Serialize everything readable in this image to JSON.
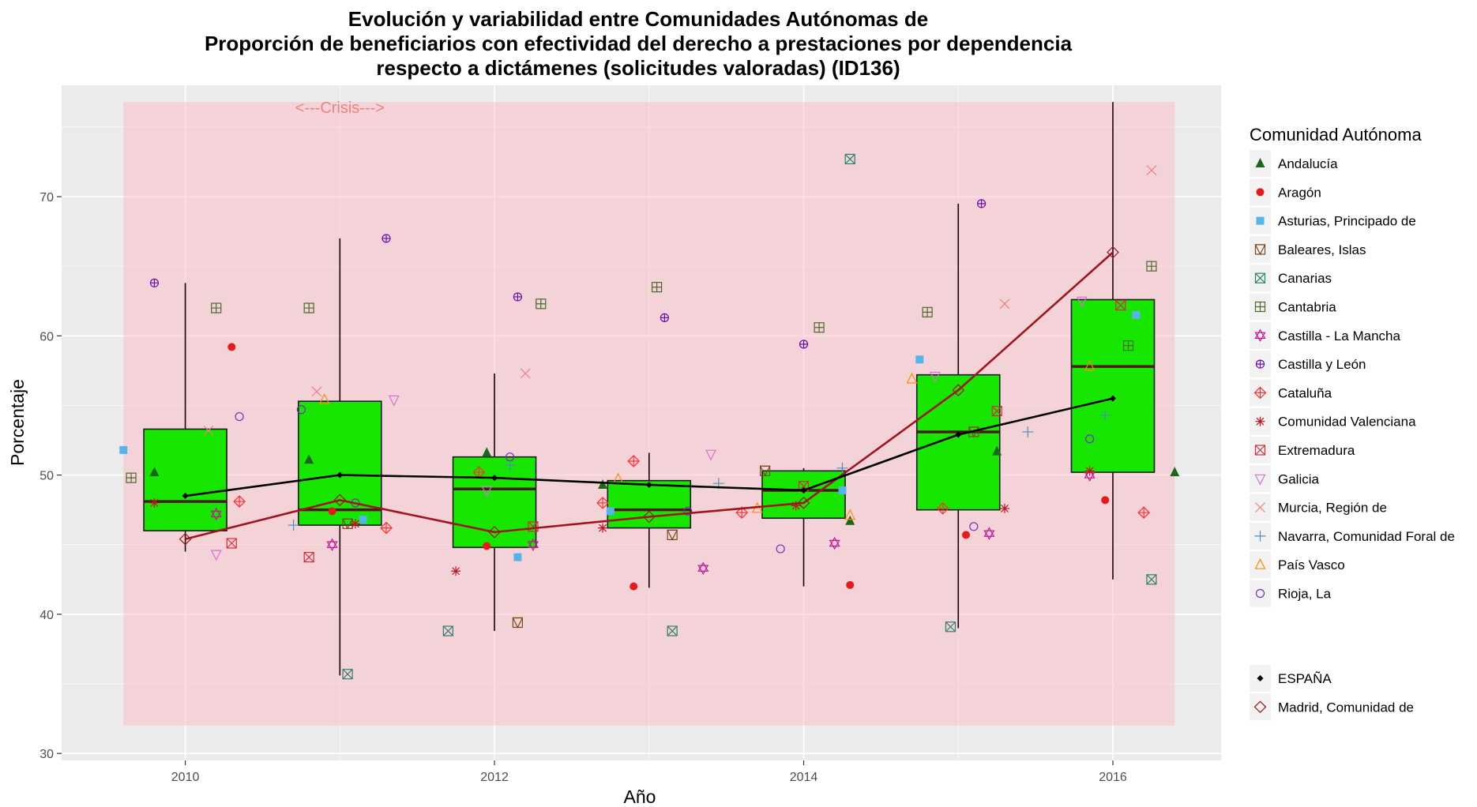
{
  "chart_data": {
    "type": "boxplot",
    "title": [
      "Evolución y variabilidad entre Comunidades Autónomas de",
      "Proporción de beneficiarios con efectividad del derecho a prestaciones por dependencia",
      "respecto a dictámenes (solicitudes valoradas) (ID136)"
    ],
    "xlabel": "Año",
    "ylabel": "Porcentaje",
    "xlim": [
      2009.2,
      2016.7
    ],
    "ylim": [
      29.5,
      78
    ],
    "x_ticks": [
      2010,
      2012,
      2014,
      2016
    ],
    "y_ticks": [
      30,
      40,
      50,
      60,
      70
    ],
    "grid": true,
    "legend_position": "right",
    "annotation": {
      "text": "<---Crisis--->",
      "x": 2011,
      "y": 76.8,
      "color": "#f08080"
    },
    "crisis_band": {
      "x_range": [
        2009.6,
        2016.4
      ],
      "y_range": [
        32,
        76.8
      ],
      "color": "#ffb6c1"
    },
    "box_fill": "#16e600",
    "boxes": [
      {
        "year": 2010,
        "min": 44.5,
        "q1": 46.0,
        "median": 48.1,
        "q3": 53.3,
        "max": 63.8
      },
      {
        "year": 2011,
        "min": 35.6,
        "q1": 46.4,
        "median": 47.5,
        "q3": 55.3,
        "max": 67.0
      },
      {
        "year": 2012,
        "min": 38.8,
        "q1": 44.8,
        "median": 49.0,
        "q3": 51.3,
        "max": 57.3
      },
      {
        "year": 2013,
        "min": 41.9,
        "q1": 46.2,
        "median": 47.5,
        "q3": 49.6,
        "max": 51.6
      },
      {
        "year": 2014,
        "min": 42.0,
        "q1": 46.9,
        "median": 48.9,
        "q3": 50.3,
        "max": 50.5
      },
      {
        "year": 2015,
        "min": 39.0,
        "q1": 47.5,
        "median": 53.1,
        "q3": 57.2,
        "max": 69.5
      },
      {
        "year": 2016,
        "min": 42.5,
        "q1": 50.2,
        "median": 57.8,
        "q3": 62.6,
        "max": 76.8
      }
    ],
    "legend_title": "Comunidad Autónoma",
    "series": [
      {
        "name": "Andalucía",
        "shape": "triangle-filled",
        "color": "#1a661a",
        "points": [
          [
            2009.8,
            50.2
          ],
          [
            2010.8,
            51.1
          ],
          [
            2011.95,
            51.6
          ],
          [
            2012.7,
            49.3
          ],
          [
            2014.3,
            46.7
          ],
          [
            2015.25,
            51.7
          ],
          [
            2016.4,
            50.2
          ]
        ]
      },
      {
        "name": "Aragón",
        "shape": "circle-filled",
        "color": "#e41a1c",
        "points": [
          [
            2010.3,
            59.2
          ],
          [
            2010.95,
            47.4
          ],
          [
            2011.95,
            44.9
          ],
          [
            2012.9,
            42.0
          ],
          [
            2014.3,
            42.1
          ],
          [
            2015.05,
            45.7
          ],
          [
            2015.95,
            48.2
          ]
        ]
      },
      {
        "name": "Asturias, Principado de",
        "shape": "square-filled",
        "color": "#56b4e9",
        "points": [
          [
            2009.6,
            51.8
          ],
          [
            2011.15,
            46.8
          ],
          [
            2012.15,
            44.1
          ],
          [
            2012.75,
            47.4
          ],
          [
            2014.25,
            48.9
          ],
          [
            2014.75,
            58.3
          ],
          [
            2016.15,
            61.5
          ]
        ]
      },
      {
        "name": "Baleares, Islas",
        "shape": "square-triangle",
        "color": "#7a4a1a",
        "points": [
          [
            2011.05,
            46.5
          ],
          [
            2012.15,
            39.4
          ],
          [
            2013.15,
            45.7
          ],
          [
            2013.75,
            50.3
          ],
          [
            2015.1,
            53.1
          ]
        ]
      },
      {
        "name": "Canarias",
        "shape": "square-x",
        "color": "#2f7f6f",
        "points": [
          [
            2011.05,
            35.7
          ],
          [
            2011.7,
            38.8
          ],
          [
            2013.15,
            38.8
          ],
          [
            2014.3,
            72.7
          ],
          [
            2014.95,
            39.1
          ],
          [
            2016.25,
            42.5
          ]
        ]
      },
      {
        "name": "Cantabria",
        "shape": "square-plus",
        "color": "#4a6b2a",
        "points": [
          [
            2009.65,
            49.8
          ],
          [
            2010.2,
            62.0
          ],
          [
            2010.8,
            62.0
          ],
          [
            2012.3,
            62.3
          ],
          [
            2013.05,
            63.5
          ],
          [
            2014.1,
            60.6
          ],
          [
            2014.8,
            61.7
          ],
          [
            2016.1,
            59.3
          ],
          [
            2016.25,
            65.0
          ]
        ]
      },
      {
        "name": "Castilla - La Mancha",
        "shape": "star-of-david",
        "color": "#c0189a",
        "points": [
          [
            2010.2,
            47.2
          ],
          [
            2010.95,
            45.0
          ],
          [
            2012.25,
            45.0
          ],
          [
            2013.35,
            43.3
          ],
          [
            2014.2,
            45.1
          ],
          [
            2015.2,
            45.8
          ],
          [
            2015.85,
            50.0
          ]
        ]
      },
      {
        "name": "Castilla y León",
        "shape": "circle-plus",
        "color": "#6a0dad",
        "points": [
          [
            2009.8,
            63.8
          ],
          [
            2011.3,
            67.0
          ],
          [
            2012.15,
            62.8
          ],
          [
            2013.1,
            61.3
          ],
          [
            2014.0,
            59.4
          ],
          [
            2015.15,
            69.5
          ]
        ]
      },
      {
        "name": "Cataluña",
        "shape": "diamond-plus",
        "color": "#ff3030",
        "points": [
          [
            2010.35,
            48.1
          ],
          [
            2011.3,
            46.2
          ],
          [
            2011.9,
            50.2
          ],
          [
            2012.7,
            48.0
          ],
          [
            2012.9,
            51.0
          ],
          [
            2013.6,
            47.3
          ],
          [
            2014.9,
            47.6
          ],
          [
            2016.2,
            47.3
          ]
        ]
      },
      {
        "name": "Comunidad Valenciana",
        "shape": "asterisk",
        "color": "#c1121f",
        "points": [
          [
            2009.8,
            48.0
          ],
          [
            2011.1,
            46.5
          ],
          [
            2011.75,
            43.1
          ],
          [
            2012.7,
            46.2
          ],
          [
            2013.95,
            47.8
          ],
          [
            2015.3,
            47.6
          ],
          [
            2015.85,
            50.3
          ]
        ]
      },
      {
        "name": "Extremadura",
        "shape": "square-x-red",
        "color": "#d62d3a",
        "points": [
          [
            2010.3,
            45.1
          ],
          [
            2010.8,
            44.1
          ],
          [
            2012.25,
            46.3
          ],
          [
            2014.0,
            49.2
          ],
          [
            2015.25,
            54.6
          ],
          [
            2016.05,
            62.2
          ]
        ]
      },
      {
        "name": "Galicia",
        "shape": "triangle-down",
        "color": "#da70d6",
        "points": [
          [
            2010.2,
            44.3
          ],
          [
            2011.35,
            55.4
          ],
          [
            2011.95,
            48.9
          ],
          [
            2013.4,
            51.5
          ],
          [
            2014.85,
            57.1
          ],
          [
            2015.8,
            62.5
          ]
        ]
      },
      {
        "name": "Murcia, Región de",
        "shape": "cross",
        "color": "#f08080",
        "points": [
          [
            2010.15,
            53.2
          ],
          [
            2010.85,
            56.0
          ],
          [
            2012.2,
            57.3
          ],
          [
            2015.3,
            62.3
          ],
          [
            2016.25,
            71.9
          ]
        ]
      },
      {
        "name": "Navarra, Comunidad Foral de",
        "shape": "plus",
        "color": "#4a90c2",
        "points": [
          [
            2010.7,
            46.4
          ],
          [
            2012.1,
            50.7
          ],
          [
            2013.45,
            49.4
          ],
          [
            2014.25,
            50.5
          ],
          [
            2015.45,
            53.1
          ],
          [
            2015.95,
            54.3
          ]
        ]
      },
      {
        "name": "País Vasco",
        "shape": "triangle-open",
        "color": "#ff8c00",
        "points": [
          [
            2010.9,
            55.4
          ],
          [
            2012.8,
            49.7
          ],
          [
            2013.7,
            47.6
          ],
          [
            2014.3,
            47.1
          ],
          [
            2014.7,
            56.9
          ],
          [
            2015.85,
            57.8
          ]
        ]
      },
      {
        "name": "Rioja, La",
        "shape": "circle-open",
        "color": "#7b2cbf",
        "points": [
          [
            2010.35,
            54.2
          ],
          [
            2010.75,
            54.7
          ],
          [
            2011.1,
            48.0
          ],
          [
            2012.1,
            51.3
          ],
          [
            2013.25,
            47.4
          ],
          [
            2013.85,
            44.7
          ],
          [
            2015.1,
            46.3
          ],
          [
            2015.85,
            52.6
          ]
        ]
      }
    ],
    "reference_series": [
      {
        "name": "ESPAÑA",
        "shape": "diamond-filled",
        "color": "#000000",
        "points": [
          [
            2010,
            48.5
          ],
          [
            2011,
            50.0
          ],
          [
            2012,
            49.8
          ],
          [
            2013,
            49.3
          ],
          [
            2014,
            48.9
          ],
          [
            2015,
            52.9
          ],
          [
            2016,
            55.5
          ]
        ]
      },
      {
        "name": "Madrid, Comunidad de",
        "shape": "diamond-open",
        "color": "#a0141e",
        "points": [
          [
            2010,
            45.4
          ],
          [
            2011,
            48.2
          ],
          [
            2012,
            45.9
          ],
          [
            2013,
            47.0
          ],
          [
            2014,
            48.0
          ],
          [
            2015,
            56.1
          ],
          [
            2016,
            66.0
          ]
        ]
      }
    ]
  }
}
